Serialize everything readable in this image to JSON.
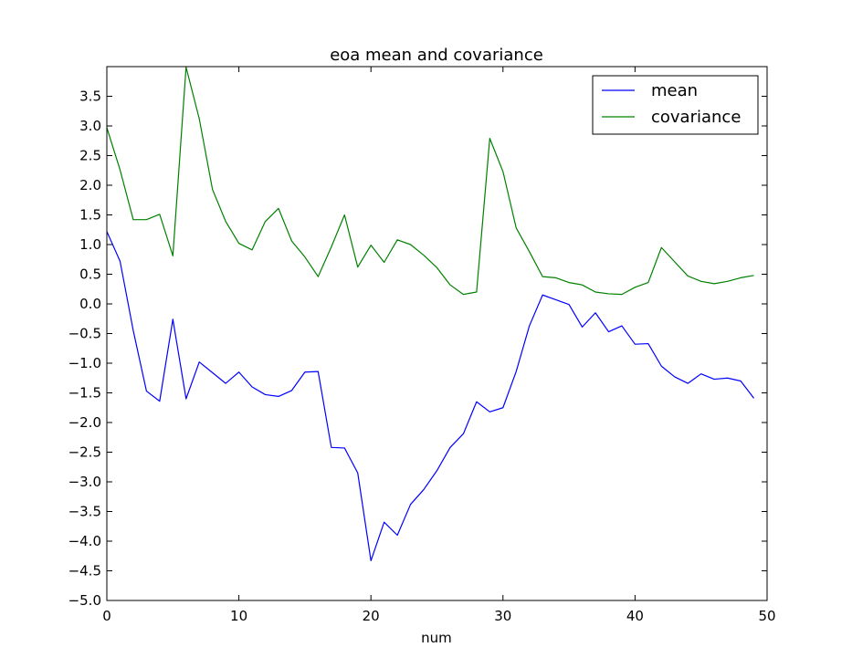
{
  "chart_data": {
    "type": "line",
    "title": "eoa mean and covariance",
    "xlabel": "num",
    "ylabel": "",
    "xlim": [
      0,
      50
    ],
    "ylim": [
      -5.0,
      4.0
    ],
    "xticks": [
      0,
      10,
      20,
      30,
      40,
      50
    ],
    "xtick_labels": [
      "0",
      "10",
      "20",
      "30",
      "40",
      "50"
    ],
    "yticks": [
      -5.0,
      -4.5,
      -4.0,
      -3.5,
      -3.0,
      -2.5,
      -2.0,
      -1.5,
      -1.0,
      -0.5,
      0.0,
      0.5,
      1.0,
      1.5,
      2.0,
      2.5,
      3.0,
      3.5
    ],
    "ytick_labels": [
      "−5.0",
      "−4.5",
      "−4.0",
      "−3.5",
      "−3.0",
      "−2.5",
      "−2.0",
      "−1.5",
      "−1.0",
      "−0.5",
      "0.0",
      "0.5",
      "1.0",
      "1.5",
      "2.0",
      "2.5",
      "3.0",
      "3.5"
    ],
    "grid": false,
    "legend_position": "top-right",
    "x": [
      0,
      1,
      2,
      3,
      4,
      5,
      6,
      7,
      8,
      9,
      10,
      11,
      12,
      13,
      14,
      15,
      16,
      17,
      18,
      19,
      20,
      21,
      22,
      23,
      24,
      25,
      26,
      27,
      28,
      29,
      30,
      31,
      32,
      33,
      34,
      35,
      36,
      37,
      38,
      39,
      40,
      41,
      42,
      43,
      44,
      45,
      46,
      47,
      48,
      49
    ],
    "series": [
      {
        "name": "mean",
        "color": "#0000ff",
        "values": [
          1.22,
          0.72,
          -0.45,
          -1.47,
          -1.64,
          -0.26,
          -1.6,
          -0.98,
          -1.16,
          -1.34,
          -1.15,
          -1.4,
          -1.53,
          -1.56,
          -1.46,
          -1.15,
          -1.14,
          -2.42,
          -2.43,
          -2.85,
          -4.33,
          -3.68,
          -3.9,
          -3.38,
          -3.13,
          -2.81,
          -2.42,
          -2.19,
          -1.65,
          -1.82,
          -1.75,
          -1.14,
          -0.37,
          0.15,
          0.07,
          -0.01,
          -0.39,
          -0.15,
          -0.47,
          -0.37,
          -0.68,
          -0.67,
          -1.05,
          -1.23,
          -1.34,
          -1.18,
          -1.27,
          -1.25,
          -1.3,
          -1.59
        ]
      },
      {
        "name": "covariance",
        "color": "#008000",
        "values": [
          2.97,
          2.26,
          1.42,
          1.42,
          1.51,
          0.81,
          3.99,
          3.12,
          1.93,
          1.39,
          1.02,
          0.91,
          1.39,
          1.61,
          1.06,
          0.79,
          0.46,
          0.96,
          1.5,
          0.62,
          0.99,
          0.7,
          1.08,
          1.0,
          0.82,
          0.61,
          0.32,
          0.16,
          0.2,
          2.79,
          2.23,
          1.28,
          0.88,
          0.46,
          0.44,
          0.36,
          0.32,
          0.2,
          0.17,
          0.16,
          0.28,
          0.36,
          0.95,
          0.71,
          0.47,
          0.38,
          0.34,
          0.38,
          0.44,
          0.48
        ]
      }
    ]
  }
}
